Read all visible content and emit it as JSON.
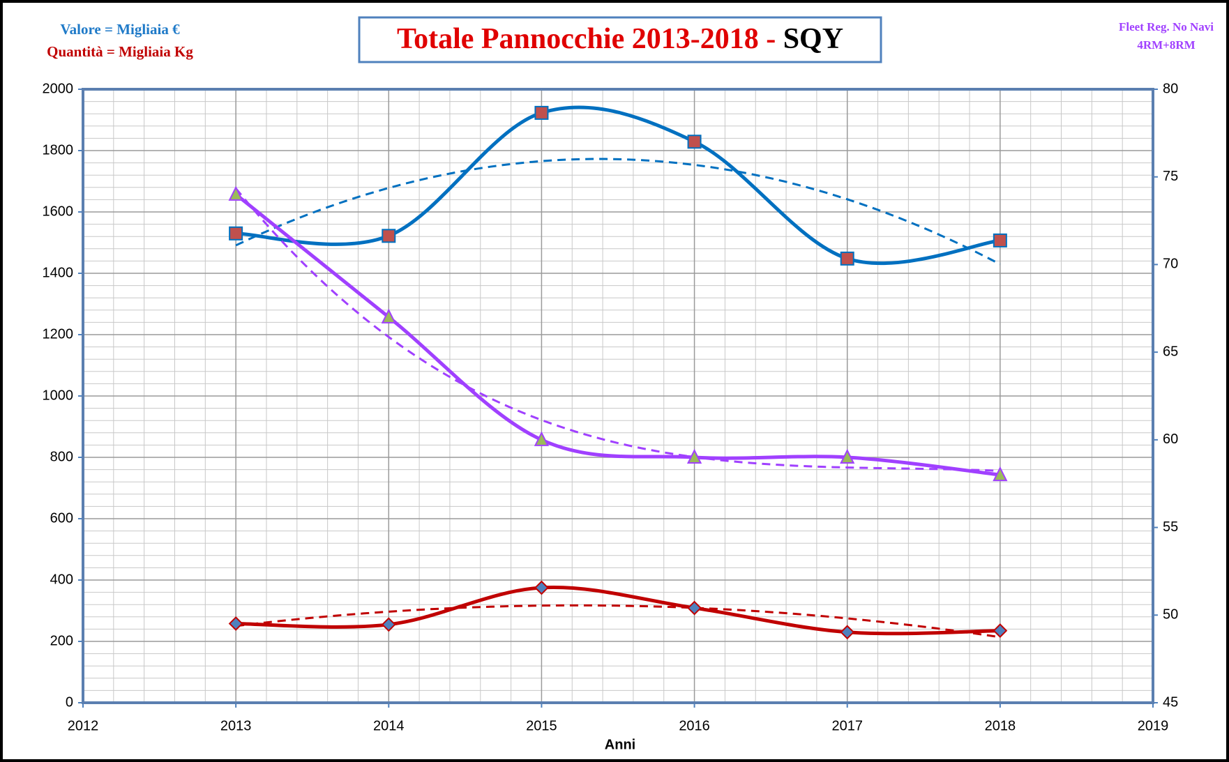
{
  "chart_data": {
    "type": "line",
    "title": "Totale Pannocchie 2013-2018 -",
    "title_code": "SQY",
    "annotations": {
      "value_unit": "Valore = Migliaia €",
      "quantity_unit": "Quantità = Migliaia Kg",
      "fleet": "Fleet Reg. No Navi",
      "fleet_detail": "4RM+8RM"
    },
    "x_label": "Anni",
    "x": [
      2013,
      2014,
      2015,
      2016,
      2017,
      2018
    ],
    "xlim": [
      2012,
      2019
    ],
    "xticks": [
      2012,
      2013,
      2014,
      2015,
      2016,
      2017,
      2018,
      2019
    ],
    "ylim": [
      0,
      2000
    ],
    "yticks": [
      0,
      200,
      400,
      600,
      800,
      1000,
      1200,
      1400,
      1600,
      1800,
      2000
    ],
    "y2lim": [
      45,
      80
    ],
    "y2ticks": [
      45,
      50,
      55,
      60,
      65,
      70,
      75,
      80
    ],
    "grid": true,
    "smooth": true,
    "series": [
      {
        "color": "#0070c0",
        "marker": "square",
        "marker_color": "#c0504d",
        "trendline_order": 2,
        "values": [
          1530,
          1522,
          1923,
          1829,
          1448,
          1507
        ]
      },
      {
        "color": "#c00000",
        "marker": "diamond",
        "marker_color": "#4f81bd",
        "trendline_order": 2,
        "values": [
          258,
          255,
          375,
          309,
          230,
          235
        ]
      },
      {
        "color": "#a040ff",
        "marker": "triangle",
        "marker_color": "#9bbb59",
        "trendline_order": 3,
        "axis": "y2",
        "values": [
          74,
          67,
          60,
          59,
          59,
          58
        ]
      }
    ]
  }
}
